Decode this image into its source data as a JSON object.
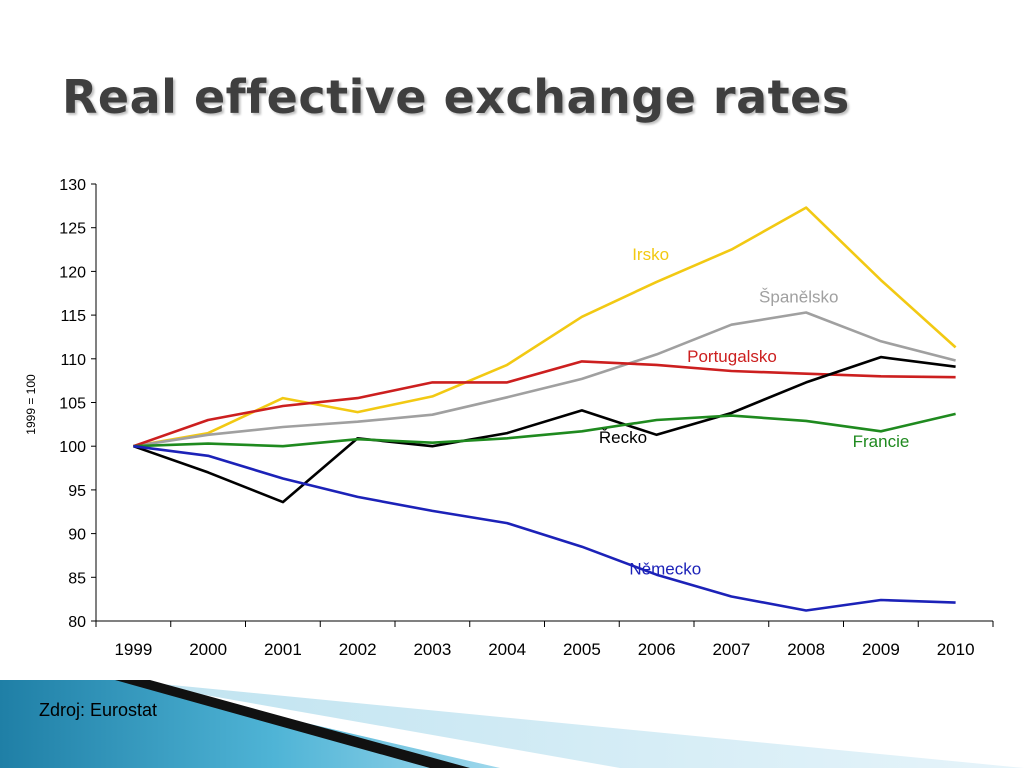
{
  "slide": {
    "title": "Real effective exchange rates",
    "source": "Zdroj: Eurostat"
  },
  "chart_data": {
    "type": "line",
    "title": "",
    "xlabel": "",
    "ylabel": "1999 = 100",
    "ylim": [
      80,
      130
    ],
    "yticks": [
      80,
      85,
      90,
      95,
      100,
      105,
      110,
      115,
      120,
      125,
      130
    ],
    "categories": [
      "1999",
      "2000",
      "2001",
      "2002",
      "2003",
      "2004",
      "2005",
      "2006",
      "2007",
      "2008",
      "2009",
      "2010"
    ],
    "grid": false,
    "series": [
      {
        "name": "Irsko",
        "color": "#f2c913",
        "values": [
          100,
          101.5,
          105.5,
          103.9,
          105.7,
          109.3,
          114.8,
          118.8,
          122.5,
          127.3,
          119.0,
          111.3
        ]
      },
      {
        "name": "Španělsko",
        "color": "#a0a0a0",
        "values": [
          100,
          101.3,
          102.2,
          102.8,
          103.6,
          105.6,
          107.7,
          110.5,
          113.9,
          115.3,
          112.0,
          109.8
        ]
      },
      {
        "name": "Portugalsko",
        "color": "#cc1f1f",
        "values": [
          100,
          103.0,
          104.6,
          105.5,
          107.3,
          107.3,
          109.7,
          109.3,
          108.6,
          108.3,
          108.0,
          107.9
        ]
      },
      {
        "name": "Řecko",
        "color": "#000000",
        "values": [
          100,
          97.0,
          93.6,
          100.9,
          100.0,
          101.5,
          104.1,
          101.3,
          103.8,
          107.3,
          110.2,
          109.1
        ]
      },
      {
        "name": "Francie",
        "color": "#1f8a1f",
        "values": [
          100,
          100.3,
          100.0,
          100.8,
          100.4,
          100.9,
          101.7,
          103.0,
          103.5,
          102.9,
          101.7,
          103.7
        ]
      },
      {
        "name": "Německo",
        "color": "#1c22b8",
        "values": [
          100,
          98.9,
          96.3,
          94.2,
          92.6,
          91.2,
          88.5,
          85.3,
          82.8,
          81.2,
          82.4,
          82.1
        ]
      }
    ]
  }
}
